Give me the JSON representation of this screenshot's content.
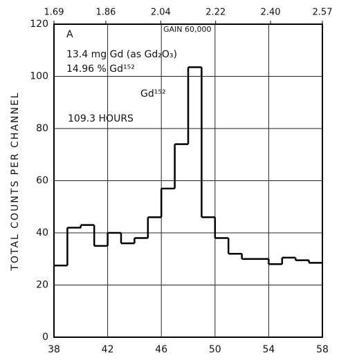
{
  "chart_data": {
    "type": "histogram",
    "ylabel": "TOTAL COUNTS PER CHANNEL",
    "bins": [
      38,
      39,
      40,
      41,
      42,
      43,
      44,
      45,
      46,
      47,
      48,
      49,
      50,
      51,
      52,
      53,
      54,
      55,
      56,
      57,
      58
    ],
    "values": [
      27.5,
      42,
      43,
      35,
      40,
      36,
      38,
      46,
      57,
      74,
      103.5,
      46,
      38,
      32,
      30,
      30,
      28,
      30.5,
      29.5,
      28.5
    ],
    "color": "#000000",
    "xlim": [
      38,
      58
    ],
    "xticks": [
      38,
      42,
      46,
      50,
      54,
      58
    ],
    "x2lim": [
      1.69,
      2.57
    ],
    "x2ticks": [
      1.69,
      1.86,
      2.04,
      2.22,
      {
        "value": 2.4,
        "label": "2.40"
      },
      2.57
    ],
    "ylim": [
      0,
      120
    ],
    "yticks": [
      0,
      20,
      40,
      60,
      80,
      100,
      120
    ],
    "grid": true,
    "annotations": [
      "A",
      "GAIN 60,000",
      "13.4 mg Gd (as Gd₂O₃)",
      "14.96 % Gd¹⁵²",
      "Gd¹⁵²",
      "109.3 HOURS"
    ]
  }
}
